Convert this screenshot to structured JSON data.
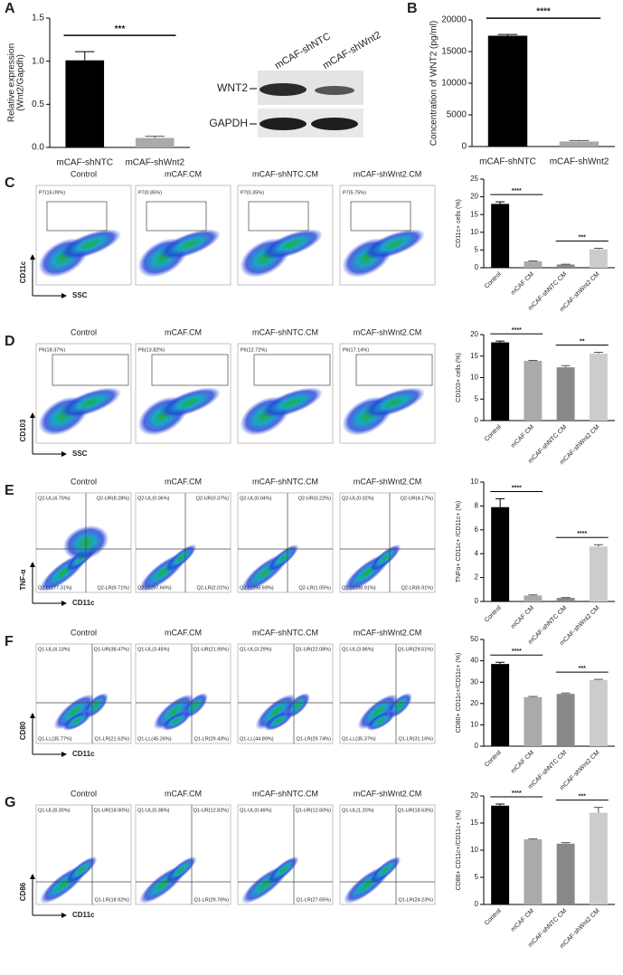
{
  "chart_data": [
    {
      "type": "bar",
      "panel": "A",
      "y_label": [
        "Relative expression",
        "(Wnt2/Gapdh)"
      ],
      "categories": [
        "mCAF-shNTC",
        "mCAF-shWnt2"
      ],
      "values": [
        1.01,
        0.11
      ],
      "errors": [
        0.1,
        0.02
      ],
      "colors": [
        "#000000",
        "#aaaaaa"
      ],
      "ylim": [
        0,
        1.5
      ],
      "yticks": [
        {
          "value": 0,
          "label": "0.0"
        },
        {
          "value": 0.5,
          "label": "0.5"
        },
        {
          "value": 1,
          "label": "1.0"
        },
        {
          "value": 1.5,
          "label": "1.5"
        }
      ],
      "significance": [
        {
          "from": 0,
          "to": 1,
          "label": "***"
        }
      ]
    },
    {
      "type": "bar",
      "panel": "B",
      "y_label": [
        "Concentration of WNT2 (pg/ml)"
      ],
      "categories": [
        "mCAF-shNTC",
        "mCAF-shWnt2"
      ],
      "values": [
        17500,
        800
      ],
      "errors": [
        200,
        150
      ],
      "colors": [
        "#000000",
        "#aaaaaa"
      ],
      "ylim": [
        0,
        20000
      ],
      "yticks": [
        0,
        5000,
        10000,
        15000,
        20000
      ],
      "significance": [
        {
          "from": 0,
          "to": 1,
          "label": "****"
        }
      ]
    },
    {
      "type": "bar",
      "y_label": [
        "CD11c+ cells (%)"
      ],
      "categories": [
        "Control",
        "mCAF CM",
        "mCAF-shNTC CM",
        "mCAF-shWnt2 CM"
      ],
      "values": [
        18,
        1.8,
        0.9,
        5.2
      ],
      "errors": [
        0.6,
        0.1,
        0.1,
        0.3
      ],
      "colors": [
        "#000000",
        "#aaaaaa",
        "#888888",
        "#cccccc"
      ],
      "ylim": [
        0,
        25
      ],
      "yticks": [
        0,
        5,
        10,
        15,
        20,
        25
      ],
      "significance": [
        {
          "from": 0,
          "to": 1,
          "label": "****"
        },
        {
          "from": 2,
          "to": 3,
          "label": "***"
        }
      ]
    },
    {
      "type": "bar",
      "y_label": [
        "CD103+ cells (%)"
      ],
      "categories": [
        "Control",
        "mCAF CM",
        "mCAF-shNTC CM",
        "mCAF-shWnt2 CM"
      ],
      "values": [
        18.2,
        13.9,
        12.4,
        15.6
      ],
      "errors": [
        0.3,
        0.1,
        0.4,
        0.3
      ],
      "colors": [
        "#000000",
        "#aaaaaa",
        "#888888",
        "#cccccc"
      ],
      "ylim": [
        0,
        20
      ],
      "yticks": [
        0,
        5,
        10,
        15,
        20
      ],
      "significance": [
        {
          "from": 0,
          "to": 1,
          "label": "****"
        },
        {
          "from": 2,
          "to": 3,
          "label": "**"
        }
      ]
    },
    {
      "type": "bar",
      "y_label": [
        "TNFα+ CD11c+ /CD11c+ (%)"
      ],
      "categories": [
        "Control",
        "mCAF CM",
        "mCAF-shNTC CM",
        "mCAF-shWnt2 CM"
      ],
      "values": [
        7.9,
        0.5,
        0.3,
        4.6
      ],
      "errors": [
        0.7,
        0.05,
        0.03,
        0.15
      ],
      "colors": [
        "#000000",
        "#aaaaaa",
        "#888888",
        "#cccccc"
      ],
      "ylim": [
        0,
        10
      ],
      "yticks": [
        0,
        2,
        4,
        6,
        8,
        10
      ],
      "significance": [
        {
          "from": 0,
          "to": 1,
          "label": "****"
        },
        {
          "from": 2,
          "to": 3,
          "label": "****"
        }
      ]
    },
    {
      "type": "bar",
      "y_label": [
        "CD80+ CD11c+/CD11c+ (%)"
      ],
      "categories": [
        "Control",
        "mCAF CM",
        "mCAF-shNTC CM",
        "mCAF-shWnt2 CM"
      ],
      "values": [
        38.5,
        23,
        24.5,
        31
      ],
      "errors": [
        0.8,
        0.3,
        0.4,
        0.3
      ],
      "colors": [
        "#000000",
        "#aaaaaa",
        "#888888",
        "#cccccc"
      ],
      "ylim": [
        0,
        50
      ],
      "yticks": [
        0,
        10,
        20,
        30,
        40,
        50
      ],
      "significance": [
        {
          "from": 0,
          "to": 1,
          "label": "****"
        },
        {
          "from": 2,
          "to": 3,
          "label": "***"
        }
      ]
    },
    {
      "type": "bar",
      "y_label": [
        "CD86+ CD11c+/CD11c+ (%)"
      ],
      "categories": [
        "Control",
        "mCAF CM",
        "mCAF-shNTC CM",
        "mCAF-shWnt2 CM"
      ],
      "values": [
        18.2,
        12,
        11.2,
        16.9
      ],
      "errors": [
        0.3,
        0.1,
        0.2,
        1
      ],
      "colors": [
        "#000000",
        "#aaaaaa",
        "#888888",
        "#cccccc"
      ],
      "ylim": [
        0,
        20
      ],
      "yticks": [
        0,
        5,
        10,
        15,
        20
      ],
      "significance": [
        {
          "from": 0,
          "to": 1,
          "label": "****"
        },
        {
          "from": 2,
          "to": 3,
          "label": "***"
        }
      ]
    }
  ],
  "western_blot": {
    "lanes": [
      "mCAF-shNTC",
      "mCAF-shWnt2"
    ],
    "bands": [
      "WNT2",
      "GAPDH"
    ]
  },
  "flow_rows": [
    {
      "panel": "C",
      "y_label": "CD11c",
      "x_label": "SSC",
      "columns": [
        {
          "title": "Control",
          "gate": "P7(16.09%)"
        },
        {
          "title": "mCAF.CM",
          "gate": "P7(0.85%)"
        },
        {
          "title": "mCAF-shNTC.CM",
          "gate": "P7(0.35%)"
        },
        {
          "title": "mCAF-shWnt2.CM",
          "gate": "P7(5.75%)"
        }
      ]
    },
    {
      "panel": "D",
      "y_label": "CD103",
      "x_label": "SSC",
      "columns": [
        {
          "title": "Control",
          "gate": "P6(18.37%)"
        },
        {
          "title": "mCAF.CM",
          "gate": "P6(13.82%)"
        },
        {
          "title": "mCAF-shNTC.CM",
          "gate": "P6(12.72%)"
        },
        {
          "title": "mCAF-shWnt2.CM",
          "gate": "P6(17.14%)"
        }
      ]
    },
    {
      "panel": "E",
      "y_label": "TNF-α",
      "x_label": "CD11c",
      "columns": [
        {
          "title": "Control",
          "quadrants": {
            "UL": "Q2-UL(4.70%)",
            "UR": "Q2-UR(8.28%)",
            "LL": "Q2-LL(77.31%)",
            "LR": "Q2-LR(9.71%)"
          }
        },
        {
          "title": "mCAF.CM",
          "quadrants": {
            "UL": "Q2-UL(0.06%)",
            "UR": "Q2-UR(0.37%)",
            "LL": "Q2-LL(97.66%)",
            "LR": "Q2-LR(2.01%)"
          }
        },
        {
          "title": "mCAF-shNTC.CM",
          "quadrants": {
            "UL": "Q2-UL(0.04%)",
            "UR": "Q2-UR(0.22%)",
            "LL": "Q2-LL(98.69%)",
            "LR": "Q2-LR(1.05%)"
          }
        },
        {
          "title": "mCAF-shWnt2.CM",
          "quadrants": {
            "UL": "Q2-UL(0.02%)",
            "UR": "Q2-UR(4.17%)",
            "LL": "Q2-LL(88.91%)",
            "LR": "Q2-LR(6.91%)"
          }
        }
      ]
    },
    {
      "panel": "F",
      "y_label": "CD80",
      "x_label": "CD11c",
      "columns": [
        {
          "title": "Control",
          "quadrants": {
            "UL": "Q1-UL(4.13%)",
            "UR": "Q1-UR(38.47%)",
            "LL": "Q1-LL(35.77%)",
            "LR": "Q1-LR(21.62%)"
          }
        },
        {
          "title": "mCAF.CM",
          "quadrants": {
            "UL": "Q1-UL(3.45%)",
            "UR": "Q1-UR(21.95%)",
            "LL": "Q1-LL(45.26%)",
            "LR": "Q1-LR(29.43%)"
          }
        },
        {
          "title": "mCAF-shNTC.CM",
          "quadrants": {
            "UL": "Q1-UL(3.29%)",
            "UR": "Q1-UR(22.08%)",
            "LL": "Q1-LL(44.89%)",
            "LR": "Q1-LR(29.74%)"
          }
        },
        {
          "title": "mCAF-shWnt2.CM",
          "quadrants": {
            "UL": "Q1-UL(3.86%)",
            "UR": "Q1-UR(29.51%)",
            "LL": "Q1-LL(35.37%)",
            "LR": "Q1-LR(31.16%)"
          }
        }
      ]
    },
    {
      "panel": "G",
      "y_label": "CD86",
      "x_label": "CD11c",
      "columns": [
        {
          "title": "Control",
          "quadrants": {
            "UL": "Q1-UL(8.30%)",
            "UR": "Q1-UR(18.90%)",
            "LR": "Q1-LR(18.92%)"
          }
        },
        {
          "title": "mCAF.CM",
          "quadrants": {
            "UL": "Q1-UL(0.38%)",
            "UR": "Q1-UR(12.82%)",
            "LR": "Q1-LR(29.76%)"
          }
        },
        {
          "title": "mCAF-shNTC.CM",
          "quadrants": {
            "UL": "Q1-UL(0.49%)",
            "UR": "Q1-UR(12.60%)",
            "LR": "Q1-LR(27.65%)"
          }
        },
        {
          "title": "mCAF-shWnt2.CM",
          "quadrants": {
            "UL": "Q1-UL(1.20%)",
            "UR": "Q1-UR(18.63%)",
            "LR": "Q1-LR(24.23%)"
          }
        }
      ]
    }
  ]
}
